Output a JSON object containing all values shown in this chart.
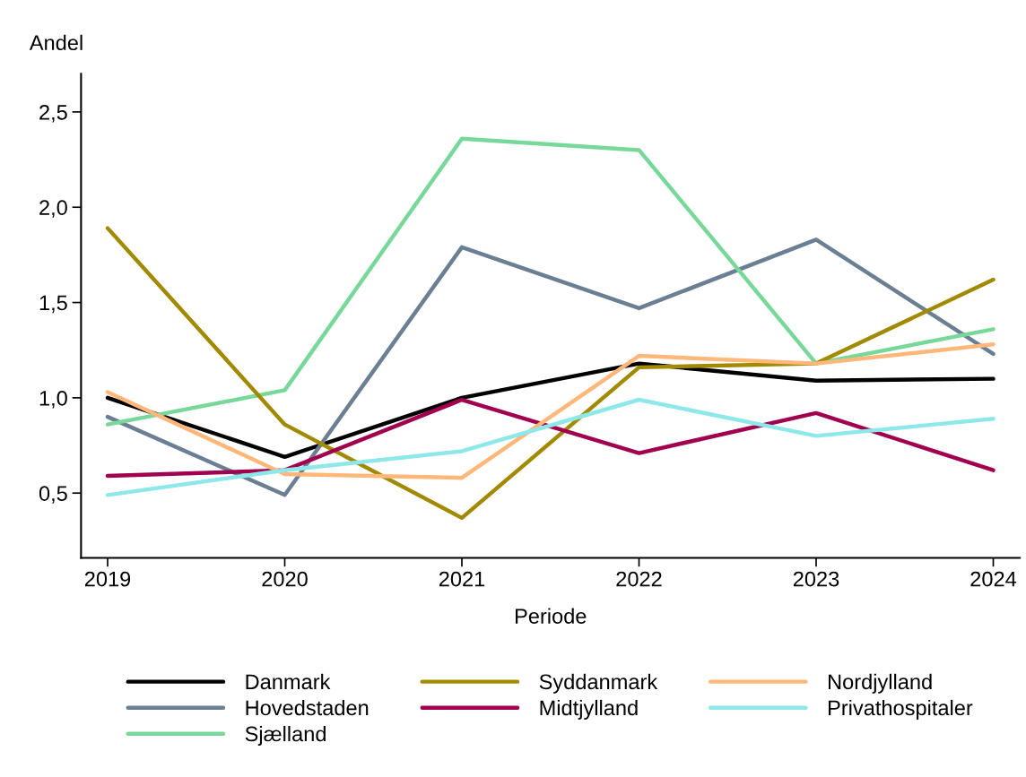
{
  "chart_data": {
    "type": "line",
    "ylabel": "Andel",
    "xlabel": "Periode",
    "x": [
      2019,
      2020,
      2021,
      2022,
      2023,
      2024
    ],
    "xlim": [
      2018.85,
      2024.15
    ],
    "xticks": [
      2019,
      2020,
      2021,
      2022,
      2023,
      2024
    ],
    "ylim": [
      0.16,
      2.7
    ],
    "yticks": [
      {
        "value": 0.5,
        "label": "0,5"
      },
      {
        "value": 1.0,
        "label": "1,0"
      },
      {
        "value": 1.5,
        "label": "1,5"
      },
      {
        "value": 2.0,
        "label": "2,0"
      },
      {
        "value": 2.5,
        "label": "2,5"
      }
    ],
    "grid": false,
    "legend": "bottom",
    "marker": "none",
    "line_style": "solid",
    "series": [
      {
        "name": "Danmark",
        "color": "#000000",
        "values": [
          1.0,
          0.69,
          1.0,
          1.18,
          1.09,
          1.1
        ]
      },
      {
        "name": "Hovedstaden",
        "color": "#6a7f94",
        "values": [
          0.9,
          0.49,
          1.79,
          1.47,
          1.83,
          1.23
        ]
      },
      {
        "name": "Sjælland",
        "color": "#78d89a",
        "values": [
          0.86,
          1.04,
          2.36,
          2.3,
          1.18,
          1.36
        ]
      },
      {
        "name": "Syddanmark",
        "color": "#a28a00",
        "values": [
          1.89,
          0.86,
          0.37,
          1.16,
          1.18,
          1.62
        ]
      },
      {
        "name": "Midtjylland",
        "color": "#a0004e",
        "values": [
          0.59,
          0.62,
          0.99,
          0.71,
          0.92,
          0.62
        ]
      },
      {
        "name": "Nordjylland",
        "color": "#ffb77a",
        "values": [
          1.03,
          0.6,
          0.58,
          1.22,
          1.18,
          1.28
        ]
      },
      {
        "name": "Privathospitaler",
        "color": "#8ee8ea",
        "values": [
          0.49,
          0.62,
          0.72,
          0.99,
          0.8,
          0.89
        ]
      }
    ]
  }
}
